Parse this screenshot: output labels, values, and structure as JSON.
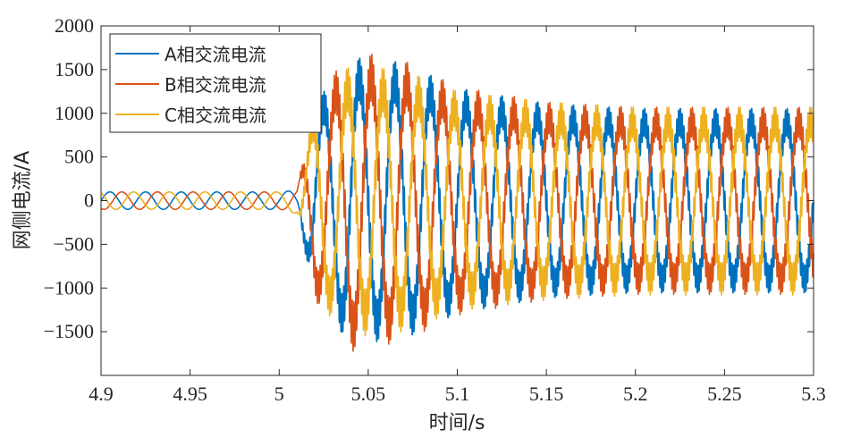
{
  "chart_data": {
    "type": "line",
    "xlabel": "时间/s",
    "ylabel": "网侧电流/A",
    "xlim": [
      4.9,
      5.3
    ],
    "ylim": [
      -2000,
      2000
    ],
    "x_ticks": [
      4.9,
      4.95,
      5,
      5.05,
      5.1,
      5.15,
      5.2,
      5.25,
      5.3
    ],
    "x_tick_labels": [
      "4.9",
      "4.95",
      "5",
      "5.05",
      "5.1",
      "5.15",
      "5.2",
      "5.25",
      "5.3"
    ],
    "y_ticks": [
      2000,
      1500,
      1000,
      500,
      0,
      -500,
      -1000,
      -1500
    ],
    "y_tick_labels": [
      "2000",
      "1500",
      "1000",
      "500",
      "0",
      "−500",
      "−1000",
      "−1500"
    ],
    "grid": false,
    "legend_position": "top-left",
    "frequency_hz": 50,
    "series": [
      {
        "name": "A相交流电流",
        "color": "#0072BD",
        "phase_deg": 0,
        "x": [
          4.9,
          5.0,
          5.01,
          5.02,
          5.04,
          5.07,
          5.1,
          5.15,
          5.2,
          5.3
        ],
        "amplitude": [
          100,
          100,
          120,
          950,
          1400,
          1350,
          1100,
          950,
          900,
          900
        ]
      },
      {
        "name": "B相交流电流",
        "color": "#D95319",
        "phase_deg": -120,
        "x": [
          4.9,
          5.0,
          5.01,
          5.02,
          5.04,
          5.07,
          5.1,
          5.15,
          5.2,
          5.3
        ],
        "amplitude": [
          100,
          100,
          120,
          950,
          1450,
          1350,
          1100,
          950,
          900,
          900
        ]
      },
      {
        "name": "C相交流电流",
        "color": "#EDB120",
        "phase_deg": 120,
        "x": [
          4.9,
          5.0,
          5.01,
          5.02,
          5.04,
          5.07,
          5.1,
          5.15,
          5.2,
          5.3
        ],
        "amplitude": [
          100,
          100,
          150,
          950,
          1300,
          1250,
          1050,
          950,
          900,
          900
        ]
      }
    ]
  }
}
